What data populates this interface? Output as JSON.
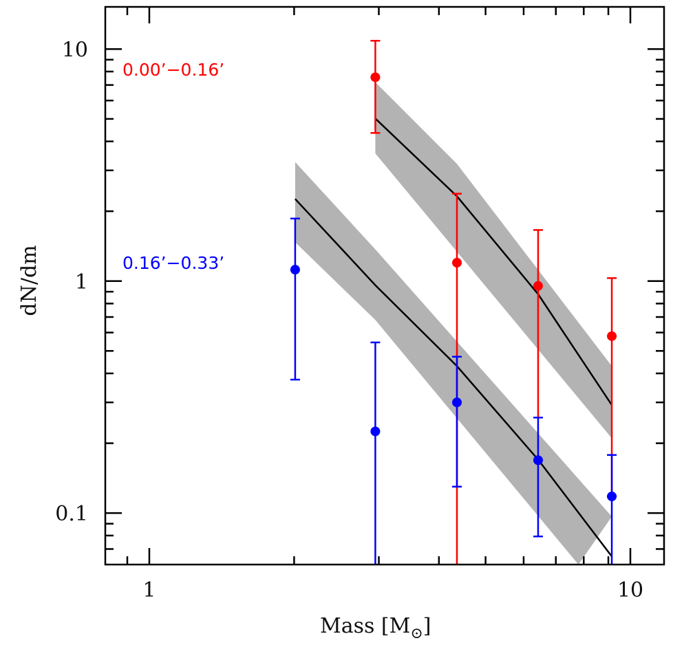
{
  "chart_data": {
    "type": "scatter",
    "title": "",
    "xlabel": "Mass [M⊙]",
    "xlabel_parts": {
      "main": "Mass [M",
      "subscript": "⊙",
      "close": "]"
    },
    "ylabel": "dN/dm",
    "xscale": "log",
    "yscale": "log",
    "xlim": [
      0.81,
      11.75
    ],
    "ylim": [
      0.06,
      15.2
    ],
    "grid": false,
    "x_tick_labels": [
      {
        "value": 1,
        "label": "1"
      },
      {
        "value": 10,
        "label": "10"
      }
    ],
    "y_tick_labels": [
      {
        "value": 0.1,
        "label": "0.1"
      },
      {
        "value": 1,
        "label": "1"
      },
      {
        "value": 10,
        "label": "10"
      }
    ],
    "x_minor_ticks": [
      0.9,
      2,
      3,
      4,
      5,
      6,
      7,
      8,
      9
    ],
    "y_minor_ticks": [
      0.07,
      0.08,
      0.09,
      0.2,
      0.3,
      0.4,
      0.5,
      0.6,
      0.7,
      0.8,
      0.9,
      2,
      3,
      4,
      5,
      6,
      7,
      8,
      9
    ],
    "series": [
      {
        "name": "0.00’−0.16’",
        "color": "#ff0000",
        "points": [
          {
            "x": 2.95,
            "y": 7.56,
            "err_low": 4.35,
            "err_high": 10.86
          },
          {
            "x": 4.36,
            "y": 1.2,
            "err_low": 0.06,
            "err_high": 2.38
          },
          {
            "x": 6.43,
            "y": 0.953,
            "err_low": 0.258,
            "err_high": 1.66
          },
          {
            "x": 9.15,
            "y": 0.579,
            "err_low": 0.118,
            "err_high": 1.03
          }
        ],
        "model": {
          "line": [
            [
              2.95,
              5.02
            ],
            [
              4.36,
              2.32
            ],
            [
              6.43,
              0.878
            ],
            [
              9.15,
              0.292
            ]
          ],
          "band_upper": [
            [
              2.95,
              7.2
            ],
            [
              4.36,
              3.2
            ],
            [
              9.15,
              0.43
            ]
          ],
          "band_lower": [
            [
              2.95,
              3.55
            ],
            [
              9.15,
              0.21
            ]
          ]
        }
      },
      {
        "name": "0.16’−0.33’",
        "color": "#0000ff",
        "points": [
          {
            "x": 2.01,
            "y": 1.12,
            "err_low": 0.376,
            "err_high": 1.86
          },
          {
            "x": 2.95,
            "y": 0.225,
            "err_low": 0.06,
            "err_high": 0.544
          },
          {
            "x": 4.36,
            "y": 0.3,
            "err_low": 0.13,
            "err_high": 0.472
          },
          {
            "x": 6.43,
            "y": 0.169,
            "err_low": 0.0793,
            "err_high": 0.258
          },
          {
            "x": 9.15,
            "y": 0.118,
            "err_low": 0.06,
            "err_high": 0.178
          }
        ],
        "model": {
          "line": [
            [
              2.01,
              2.26
            ],
            [
              2.95,
              0.96
            ],
            [
              4.36,
              0.43
            ],
            [
              6.43,
              0.17
            ],
            [
              9.15,
              0.065
            ]
          ],
          "band_upper": [
            [
              2.01,
              3.26
            ],
            [
              2.95,
              1.37
            ],
            [
              9.15,
              0.0966
            ]
          ],
          "band_lower": [
            [
              2.01,
              1.47
            ],
            [
              2.95,
              0.68
            ],
            [
              7.8,
              0.06
            ]
          ]
        }
      }
    ],
    "annotations": [
      {
        "text": "0.00’−0.16’",
        "color": "#ff0000",
        "position": "upper-left"
      },
      {
        "text": "0.16’−0.33’",
        "color": "#0000ff",
        "position": "middle-left"
      }
    ],
    "band_color": "#b3b3b3",
    "line_color": "#000000"
  }
}
